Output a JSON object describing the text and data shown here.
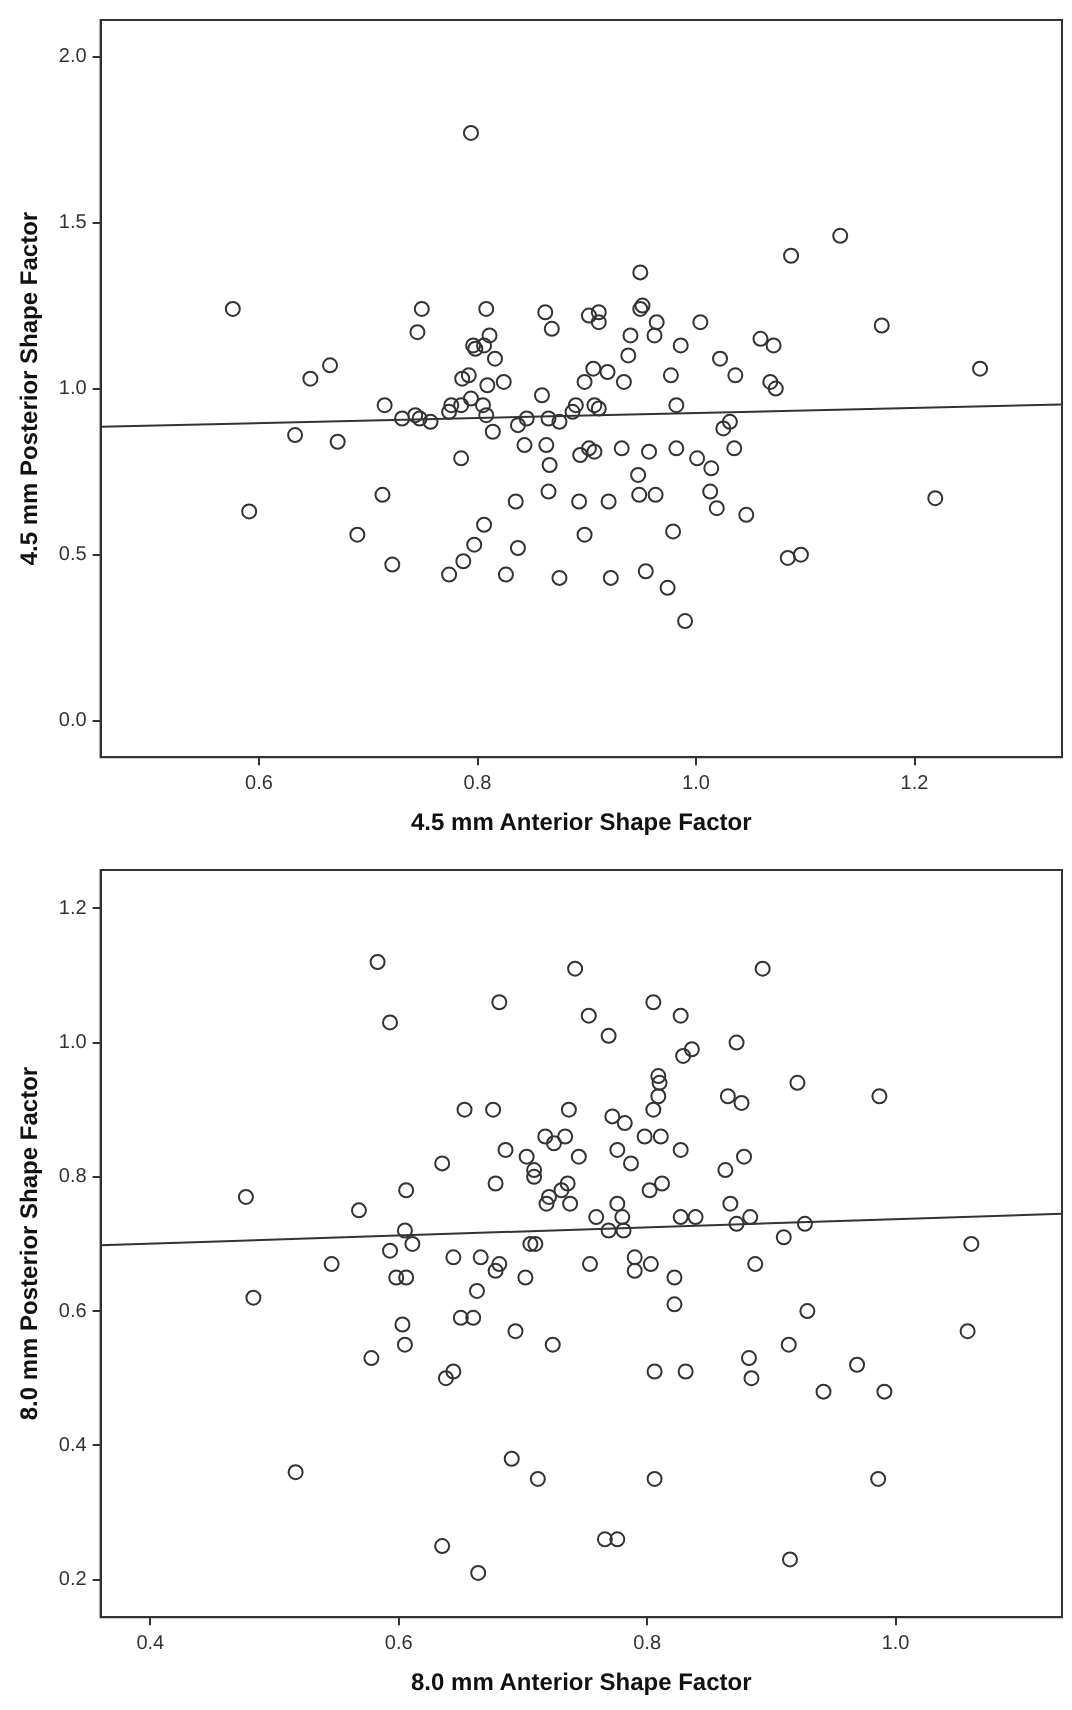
{
  "chart_data": [
    {
      "type": "scatter",
      "xlabel": "4.5 mm Anterior Shape Factor",
      "ylabel": "4.5 mm Posterior Shape Factor",
      "xlim": [
        0.455,
        1.335
      ],
      "ylim": [
        -0.11,
        2.11
      ],
      "xticks": [
        0.6,
        0.8,
        {
          "value": 1,
          "label": "1.0"
        },
        1.2
      ],
      "yticks": [
        {
          "value": 0,
          "label": "0.0"
        },
        0.5,
        {
          "value": 1,
          "label": "1.0"
        },
        1.5,
        {
          "value": 2,
          "label": "2.0"
        }
      ],
      "grid": false,
      "legend": false,
      "series": [
        {
          "color": "#333333",
          "marker": "circle",
          "x": [
            0.794,
            1.132,
            1.087,
            0.949,
            0.576,
            0.749,
            0.808,
            0.862,
            0.902,
            0.911,
            0.911,
            0.949,
            0.951,
            0.964,
            1.004,
            1.17,
            0.745,
            0.868,
            0.811,
            0.94,
            0.962,
            1.059,
            0.796,
            0.806,
            0.798,
            0.986,
            1.071,
            0.816,
            0.938,
            1.022,
            0.647,
            0.665,
            0.786,
            0.792,
            0.809,
            0.824,
            0.859,
            0.898,
            0.906,
            0.919,
            0.934,
            0.977,
            1.036,
            1.068,
            1.073,
            1.26,
            0.715,
            0.731,
            0.743,
            0.747,
            0.757,
            0.774,
            0.776,
            0.785,
            0.794,
            0.805,
            0.808,
            0.814,
            0.837,
            0.845,
            0.865,
            0.875,
            0.887,
            0.89,
            0.907,
            0.911,
            0.982,
            0.633,
            0.672,
            0.785,
            0.843,
            0.863,
            0.866,
            0.894,
            0.902,
            0.907,
            0.932,
            0.957,
            0.982,
            1.001,
            1.014,
            1.025,
            1.031,
            1.035,
            0.947,
            0.713,
            0.865,
            0.835,
            0.893,
            0.92,
            0.948,
            0.963,
            1.013,
            1.019,
            1.046,
            1.219,
            0.591,
            0.69,
            0.806,
            0.898,
            0.979,
            0.797,
            0.837,
            0.787,
            0.722,
            0.774,
            0.826,
            0.875,
            0.922,
            0.954,
            0.974,
            0.99,
            1.084,
            1.096
          ],
          "values": [
            1.77,
            1.46,
            1.4,
            1.35,
            1.24,
            1.24,
            1.24,
            1.23,
            1.22,
            1.23,
            1.2,
            1.24,
            1.25,
            1.2,
            1.2,
            1.19,
            1.17,
            1.18,
            1.16,
            1.16,
            1.16,
            1.15,
            1.13,
            1.13,
            1.12,
            1.13,
            1.13,
            1.09,
            1.1,
            1.09,
            1.03,
            1.07,
            1.03,
            1.04,
            1.01,
            1.02,
            0.98,
            1.02,
            1.06,
            1.05,
            1.02,
            1.04,
            1.04,
            1.02,
            1,
            1.06,
            0.95,
            0.91,
            0.92,
            0.91,
            0.9,
            0.93,
            0.95,
            0.95,
            0.97,
            0.95,
            0.92,
            0.87,
            0.89,
            0.91,
            0.91,
            0.9,
            0.93,
            0.95,
            0.95,
            0.94,
            0.95,
            0.86,
            0.84,
            0.79,
            0.83,
            0.83,
            0.77,
            0.8,
            0.82,
            0.81,
            0.82,
            0.81,
            0.82,
            0.79,
            0.76,
            0.88,
            0.9,
            0.82,
            0.74,
            0.68,
            0.69,
            0.66,
            0.66,
            0.66,
            0.68,
            0.68,
            0.69,
            0.64,
            0.62,
            0.67,
            0.63,
            0.56,
            0.59,
            0.56,
            0.57,
            0.53,
            0.52,
            0.48,
            0.47,
            0.44,
            0.44,
            0.43,
            0.43,
            0.45,
            0.4,
            0.3,
            0.49,
            0.5
          ]
        },
        {
          "type": "line",
          "marker": "none",
          "color": "#333333",
          "x": [
            0.455,
            1.335
          ],
          "values": [
            0.885,
            0.952
          ]
        }
      ]
    },
    {
      "type": "scatter",
      "xlabel": "8.0 mm Anterior Shape Factor",
      "ylabel": "8.0 mm Posterior Shape Factor",
      "xlim": [
        0.36,
        1.134
      ],
      "ylim": [
        0.144,
        1.257
      ],
      "xticks": [
        0.4,
        0.6,
        0.8,
        {
          "value": 1,
          "label": "1.0"
        }
      ],
      "yticks": [
        0.2,
        0.4,
        0.6,
        0.8,
        {
          "value": 1,
          "label": "1.0"
        },
        1.2
      ],
      "grid": false,
      "legend": false,
      "series": [
        {
          "color": "#333333",
          "marker": "circle",
          "x": [
            0.583,
            0.593,
            0.742,
            0.893,
            0.681,
            0.805,
            0.753,
            0.827,
            0.769,
            0.872,
            0.829,
            0.836,
            0.809,
            0.81,
            0.809,
            0.921,
            0.987,
            0.865,
            0.876,
            0.653,
            0.676,
            0.737,
            0.805,
            0.772,
            0.782,
            0.718,
            0.734,
            0.725,
            0.798,
            0.811,
            0.827,
            0.686,
            0.703,
            0.745,
            0.776,
            0.787,
            0.878,
            0.635,
            0.709,
            0.709,
            0.863,
            0.736,
            0.731,
            0.678,
            0.606,
            0.802,
            0.812,
            0.477,
            0.721,
            0.738,
            0.776,
            0.719,
            0.867,
            0.568,
            0.759,
            0.827,
            0.839,
            0.872,
            0.883,
            0.78,
            0.781,
            0.769,
            0.927,
            0.605,
            0.611,
            0.593,
            0.706,
            0.71,
            0.91,
            1.061,
            0.546,
            0.598,
            0.606,
            0.644,
            0.666,
            0.681,
            0.678,
            0.663,
            0.702,
            0.754,
            0.79,
            0.79,
            0.803,
            0.822,
            0.822,
            0.887,
            0.483,
            0.603,
            0.605,
            0.65,
            0.66,
            0.694,
            0.724,
            0.578,
            0.638,
            0.644,
            0.806,
            0.831,
            0.882,
            0.884,
            0.914,
            0.929,
            0.942,
            0.969,
            0.991,
            1.058,
            0.517,
            0.691,
            0.712,
            0.806,
            0.986,
            0.635,
            0.766,
            0.776,
            0.664,
            0.915
          ],
          "values": [
            1.12,
            1.03,
            1.11,
            1.11,
            1.06,
            1.06,
            1.04,
            1.04,
            1.01,
            1,
            0.98,
            0.99,
            0.95,
            0.94,
            0.92,
            0.94,
            0.92,
            0.92,
            0.91,
            0.9,
            0.9,
            0.9,
            0.9,
            0.89,
            0.88,
            0.86,
            0.86,
            0.85,
            0.86,
            0.86,
            0.84,
            0.84,
            0.83,
            0.83,
            0.84,
            0.82,
            0.83,
            0.82,
            0.81,
            0.8,
            0.81,
            0.79,
            0.78,
            0.79,
            0.78,
            0.78,
            0.79,
            0.77,
            0.77,
            0.76,
            0.76,
            0.76,
            0.76,
            0.75,
            0.74,
            0.74,
            0.74,
            0.73,
            0.74,
            0.74,
            0.72,
            0.72,
            0.73,
            0.72,
            0.7,
            0.69,
            0.7,
            0.7,
            0.71,
            0.7,
            0.67,
            0.65,
            0.65,
            0.68,
            0.68,
            0.67,
            0.66,
            0.63,
            0.65,
            0.67,
            0.68,
            0.66,
            0.67,
            0.65,
            0.61,
            0.67,
            0.62,
            0.58,
            0.55,
            0.59,
            0.59,
            0.57,
            0.55,
            0.53,
            0.5,
            0.51,
            0.51,
            0.51,
            0.53,
            0.5,
            0.55,
            0.6,
            0.48,
            0.52,
            0.48,
            0.57,
            0.36,
            0.38,
            0.35,
            0.35,
            0.35,
            0.25,
            0.26,
            0.26,
            0.21,
            0.23
          ]
        },
        {
          "type": "line",
          "marker": "none",
          "color": "#333333",
          "x": [
            0.36,
            1.134
          ],
          "values": [
            0.698,
            0.745
          ]
        }
      ]
    }
  ]
}
